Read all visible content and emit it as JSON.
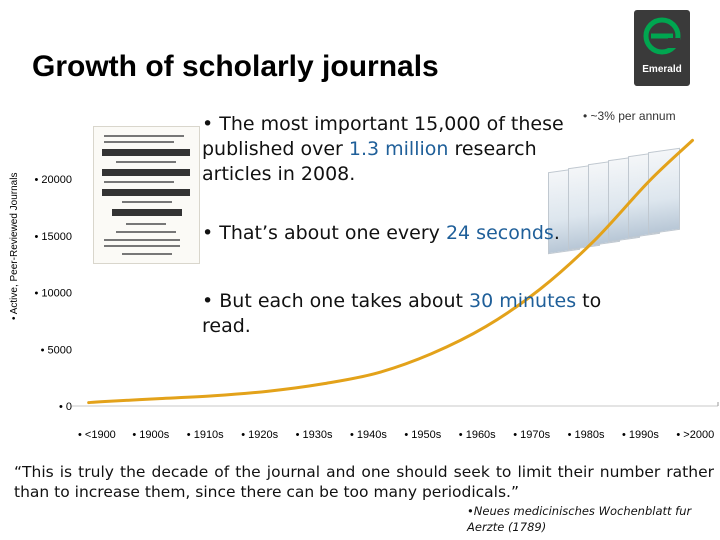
{
  "page": {
    "title": "Growth of scholarly journals"
  },
  "logo": {
    "text": "Emerald",
    "icon": "emerald-logo-icon",
    "color": "#2d2d2d",
    "accent": "#00a650"
  },
  "bullets": {
    "b1_pre": "The most important 15,000 of these published over ",
    "b1_hl": "1.3 million",
    "b1_post": " research articles in 2008.",
    "b2_pre": "That’s about one every ",
    "b2_hl": "24 seconds",
    "b2_post": ".",
    "b3_pre": "But each one takes about ",
    "b3_hl": "30 minutes",
    "b3_post": " to read."
  },
  "quote": {
    "text": "“This is truly the decade of the journal and one should seek to limit their number rather than to increase them, since there can be too many periodicals.”",
    "source": "Neues medicinisches Wochenblatt fur Aerzte (1789)"
  },
  "chart_data": {
    "type": "line",
    "ylabel": "Active, Peer-Reviewed Journals",
    "categories": [
      "<1900",
      "1900s",
      "1910s",
      "1920s",
      "1930s",
      "1940s",
      "1950s",
      "1960s",
      "1970s",
      "1980s",
      "1990s",
      ">2000"
    ],
    "yticks": [
      0,
      5000,
      10000,
      15000,
      20000
    ],
    "ylim": [
      0,
      25000
    ],
    "annotation": "~3% per annum",
    "line_color": "#e3a21a",
    "x": [
      -0.3,
      0.0,
      1.0,
      2.0,
      3.0,
      4.0,
      5.0,
      6.0,
      7.0,
      8.0,
      9.0,
      10.0,
      10.8
    ],
    "values": [
      300,
      400,
      650,
      900,
      1300,
      1950,
      2900,
      4600,
      7000,
      10300,
      14600,
      19800,
      23400
    ]
  }
}
